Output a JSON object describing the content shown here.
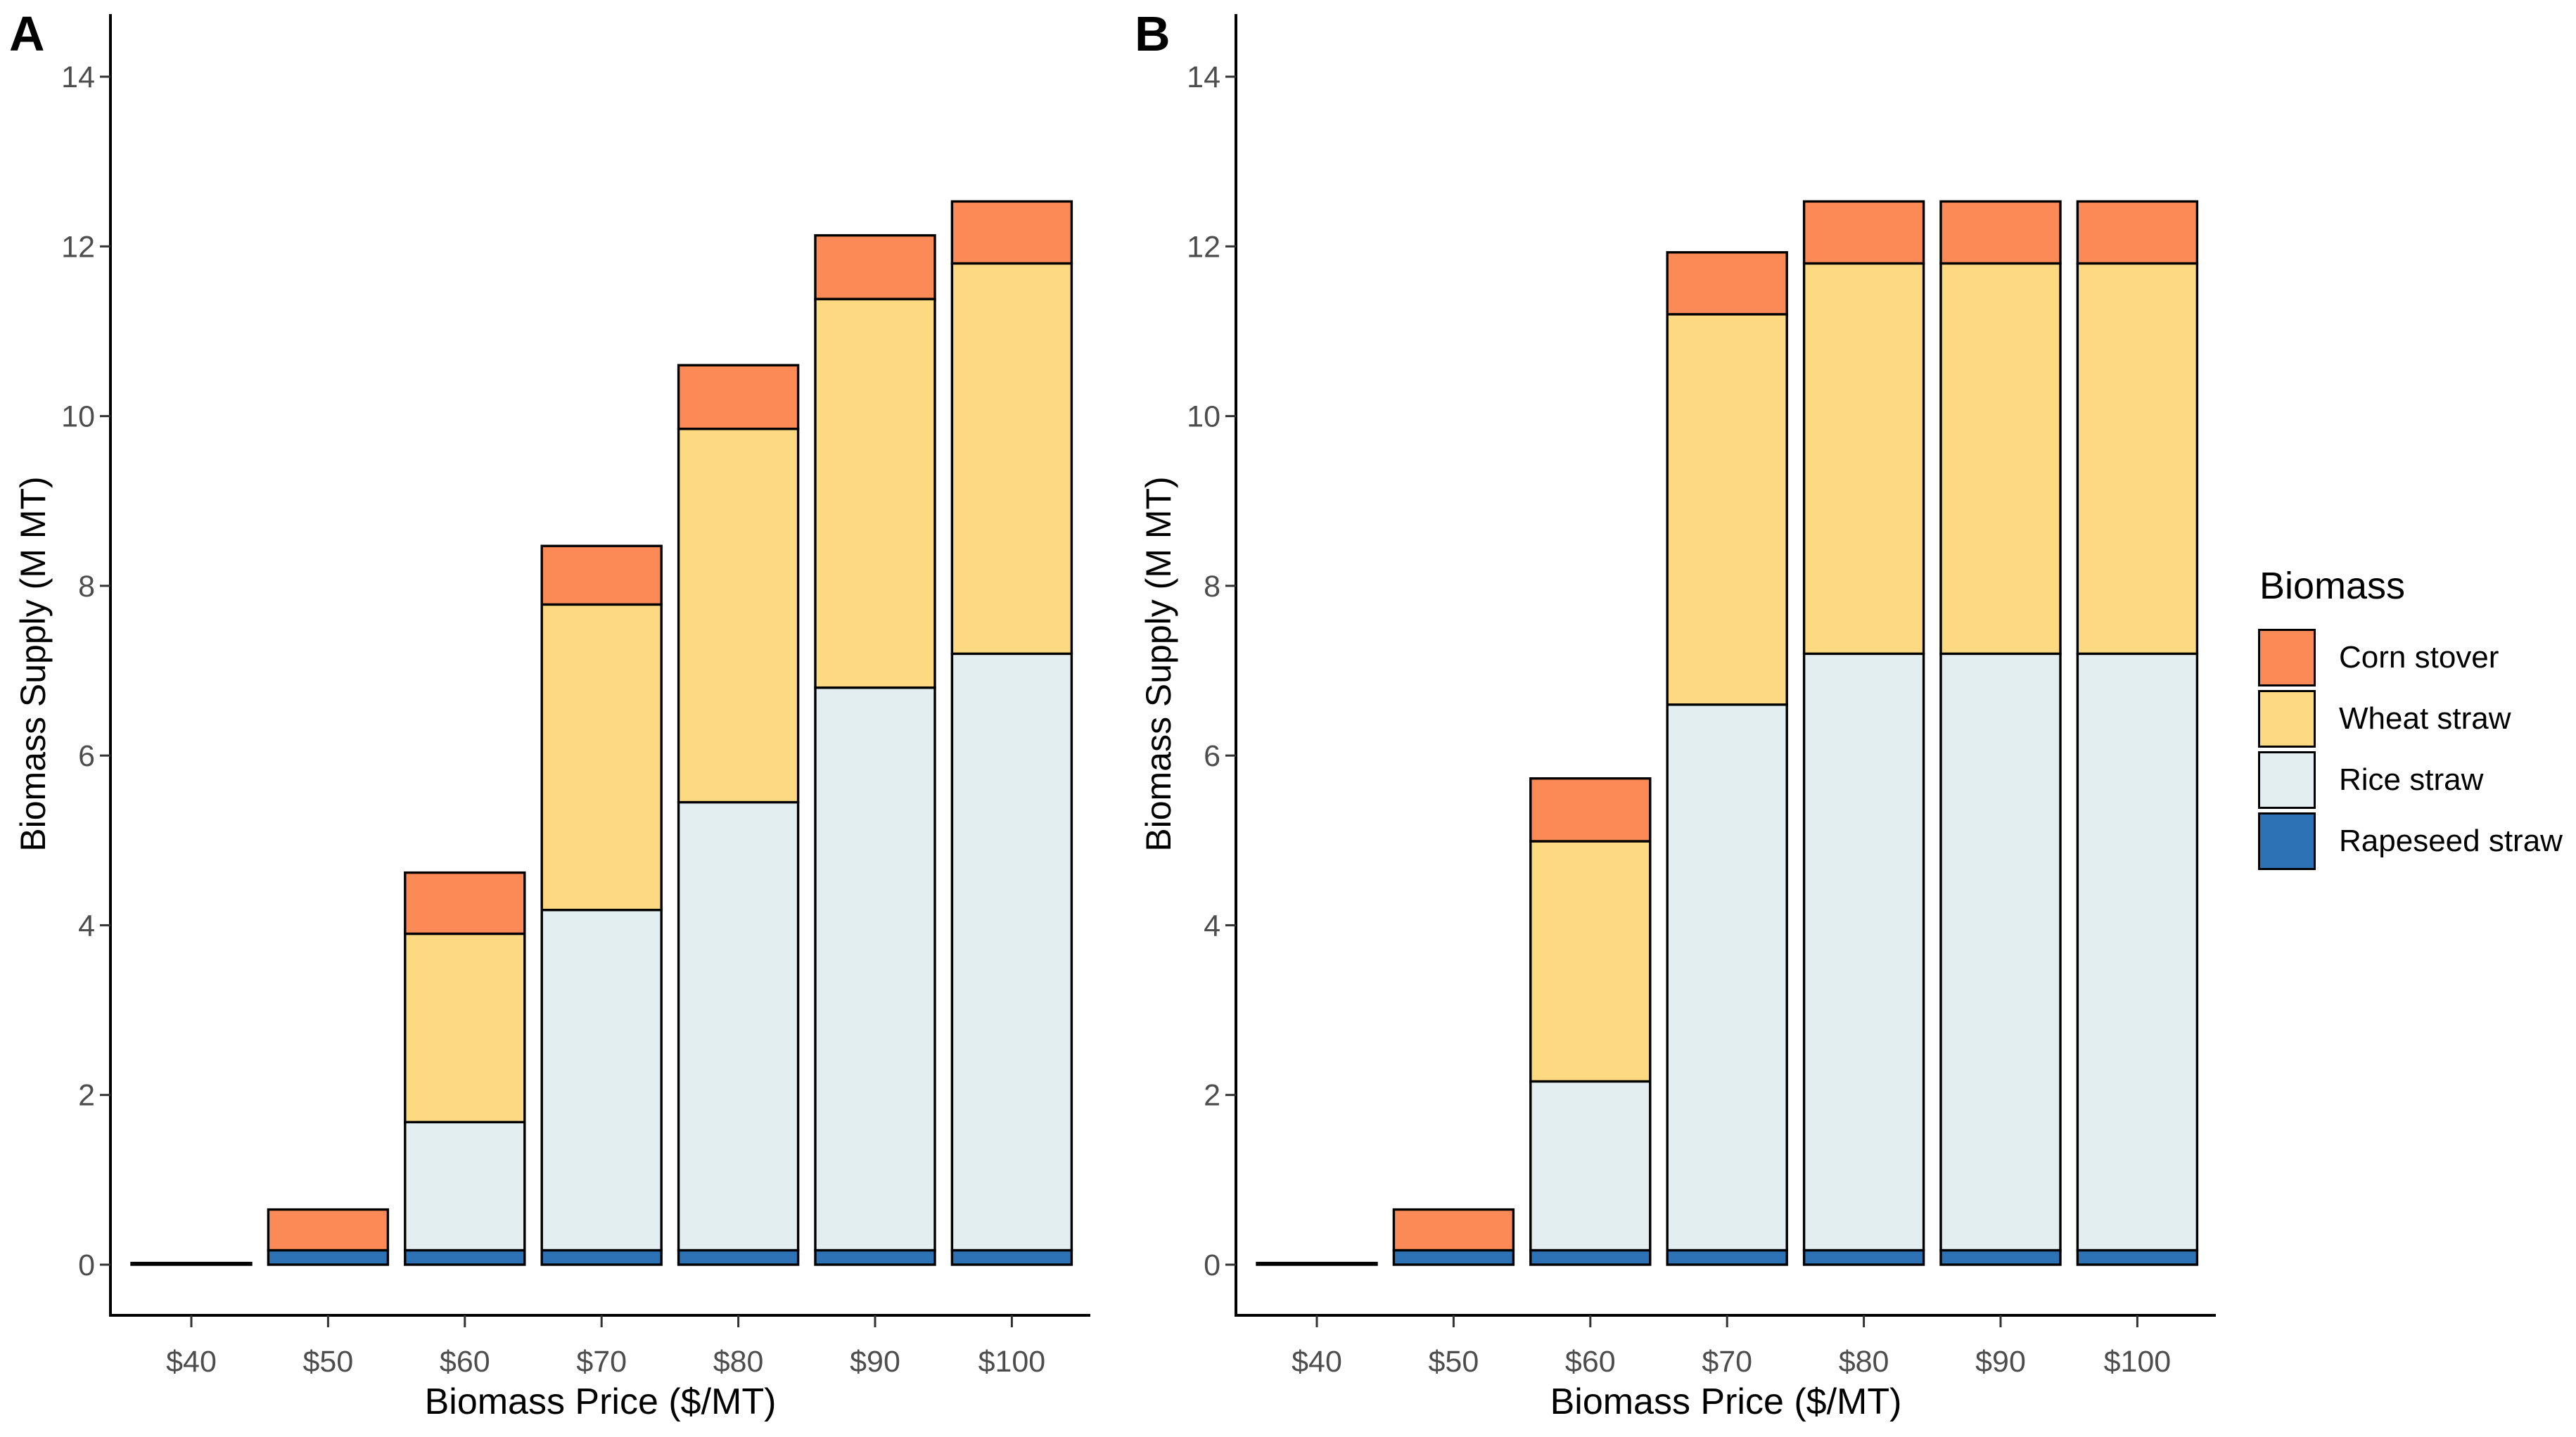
{
  "figure": {
    "background": "#ffffff",
    "axis_text_color": "#4d4d4d",
    "axis_line_color": "#000000",
    "bar_outline_color": "#000000"
  },
  "chart_data": [
    {
      "type": "bar",
      "stacked": true,
      "panel_label": "A",
      "xlabel": "Biomass Price ($/MT)",
      "ylabel": "Biomass Supply (M MT)",
      "categories": [
        "$40",
        "$50",
        "$60",
        "$70",
        "$80",
        "$90",
        "$100"
      ],
      "yticks": [
        0,
        2,
        4,
        6,
        8,
        10,
        12,
        14
      ],
      "ylim": [
        0,
        14.7
      ],
      "grid": false,
      "legend_position": "right",
      "series": [
        {
          "name": "Rapeseed straw",
          "color": "#2D72B5",
          "values": [
            0.02,
            0.17,
            0.17,
            0.17,
            0.17,
            0.17,
            0.17
          ]
        },
        {
          "name": "Rice straw",
          "color": "#E2EEEF",
          "values": [
            0,
            0,
            1.51,
            4.01,
            5.28,
            6.63,
            7.03
          ]
        },
        {
          "name": "Wheat straw",
          "color": "#FDDA82",
          "values": [
            0,
            0,
            2.22,
            3.6,
            4.4,
            4.58,
            4.6
          ]
        },
        {
          "name": "Corn stover",
          "color": "#FC8A56",
          "values": [
            0,
            0.48,
            0.72,
            0.69,
            0.75,
            0.75,
            0.73
          ]
        }
      ],
      "totals": [
        0.02,
        0.65,
        4.62,
        8.47,
        10.6,
        12.13,
        12.53
      ]
    },
    {
      "type": "bar",
      "stacked": true,
      "panel_label": "B",
      "xlabel": "Biomass Price ($/MT)",
      "ylabel": "Biomass Supply (M MT)",
      "categories": [
        "$40",
        "$50",
        "$60",
        "$70",
        "$80",
        "$90",
        "$100"
      ],
      "yticks": [
        0,
        2,
        4,
        6,
        8,
        10,
        12,
        14
      ],
      "ylim": [
        0,
        14.7
      ],
      "grid": false,
      "legend_position": "right",
      "series": [
        {
          "name": "Rapeseed straw",
          "color": "#2D72B5",
          "values": [
            0.02,
            0.17,
            0.17,
            0.17,
            0.17,
            0.17,
            0.17
          ]
        },
        {
          "name": "Rice straw",
          "color": "#E2EEEF",
          "values": [
            0,
            0,
            1.99,
            6.43,
            7.03,
            7.03,
            7.03
          ]
        },
        {
          "name": "Wheat straw",
          "color": "#FDDA82",
          "values": [
            0,
            0,
            2.83,
            4.6,
            4.6,
            4.6,
            4.6
          ]
        },
        {
          "name": "Corn stover",
          "color": "#FC8A56",
          "values": [
            0,
            0.48,
            0.74,
            0.73,
            0.73,
            0.73,
            0.73
          ]
        }
      ],
      "totals": [
        0.02,
        0.65,
        5.73,
        11.93,
        12.53,
        12.53,
        12.53
      ]
    }
  ],
  "legend": {
    "title": "Biomass",
    "items": [
      {
        "label": "Corn stover",
        "color": "#FC8A56"
      },
      {
        "label": "Wheat straw",
        "color": "#FDDA82"
      },
      {
        "label": "Rice straw",
        "color": "#E2EEEF"
      },
      {
        "label": "Rapeseed straw",
        "color": "#2D72B5"
      }
    ]
  }
}
